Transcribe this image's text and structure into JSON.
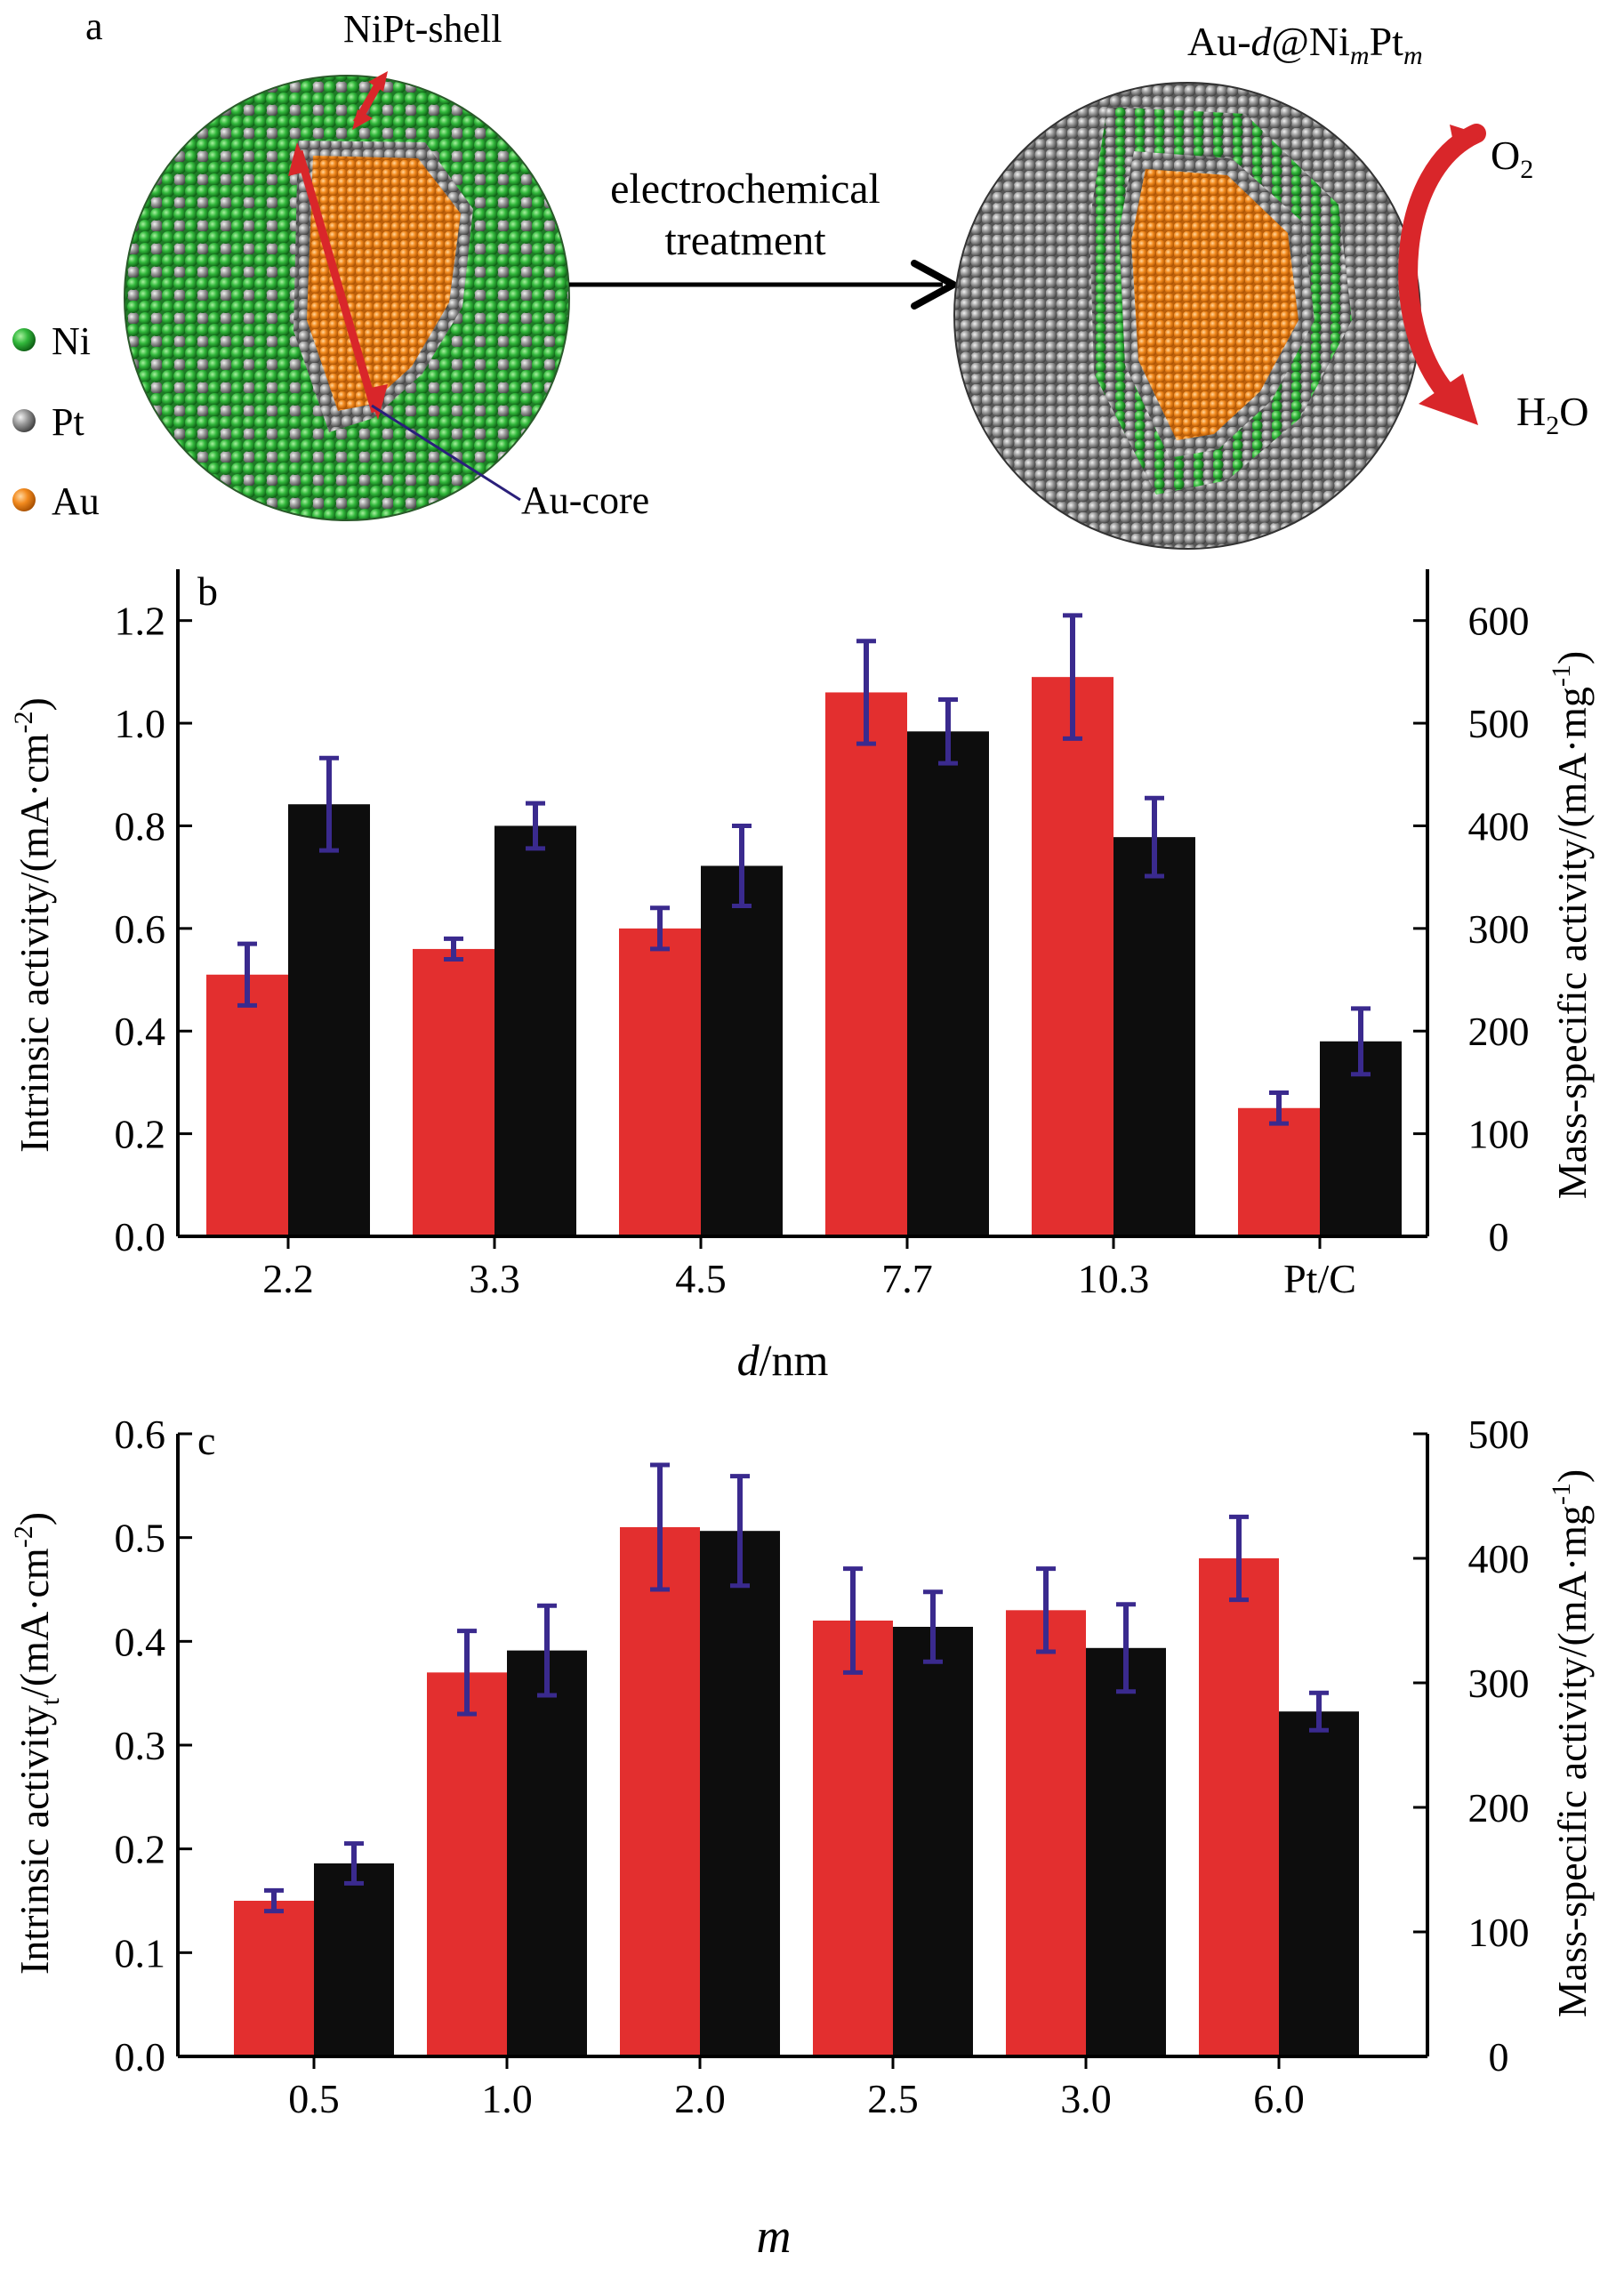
{
  "panel_a": {
    "label": "a",
    "shell_label": "NiPt-shell",
    "core_label": "Au-core",
    "arrow_text_line1": "electrochemical",
    "arrow_text_line2": "treatment",
    "product_label_prefix": "Au-",
    "product_label_d": "d",
    "product_label_mid": "@Ni",
    "product_label_sub1": "m",
    "product_label_pt": "Pt",
    "product_label_sub2": "m",
    "o2_main": "O",
    "o2_sub": "2",
    "h2o_h": "H",
    "h2o_sub": "2",
    "h2o_o": "O",
    "legend": [
      {
        "label": "Ni",
        "color": "#2fae3c"
      },
      {
        "label": "Pt",
        "color": "#8f8f8f"
      },
      {
        "label": "Au",
        "color": "#f08a1e"
      }
    ]
  },
  "colors": {
    "intrinsic": "#e32f2f",
    "mass": "#0d0d0d",
    "errorbar": "#3a2a8e",
    "arrow": "#d9262a"
  },
  "chart_data": [
    {
      "type": "bar",
      "panel_label": "b",
      "categories": [
        "2.2",
        "3.3",
        "4.5",
        "7.7",
        "10.3",
        "Pt/C"
      ],
      "xlabel_italic": "d",
      "xlabel_rest": "/nm",
      "ylabel_left": "Intrinsic activity/(mA·cm",
      "ylabel_left_sup": "-2",
      "ylabel_left_end": ")",
      "ylabel_right": "Mass-specific activity/(mA·mg",
      "ylabel_right_sup": "-1",
      "ylabel_right_end": ")",
      "ylim_left": [
        0,
        1.3
      ],
      "ylim_right": [
        0,
        650
      ],
      "yticks_left": [
        "0.0",
        "0.2",
        "0.4",
        "0.6",
        "0.8",
        "1.0",
        "1.2"
      ],
      "yticks_right": [
        "0",
        "100",
        "200",
        "300",
        "400",
        "500",
        "600"
      ],
      "series": [
        {
          "axis": "left",
          "color": "#e32f2f",
          "values": [
            0.51,
            0.56,
            0.6,
            1.06,
            1.09,
            0.25
          ],
          "errors": [
            0.06,
            0.02,
            0.04,
            0.1,
            0.12,
            0.03
          ]
        },
        {
          "axis": "right",
          "color": "#0d0d0d",
          "values": [
            421,
            400,
            361,
            492,
            389,
            190
          ],
          "errors": [
            45,
            22,
            39,
            31,
            38,
            32
          ]
        }
      ]
    },
    {
      "type": "bar",
      "panel_label": "c",
      "categories": [
        "0.5",
        "1.0",
        "2.0",
        "2.5",
        "3.0",
        "6.0"
      ],
      "xlabel_italic": "m",
      "xlabel_rest": "",
      "ylabel_left": "Intrinsic activity",
      "ylabel_left_sub": "t",
      "ylabel_left_rest": "/(mA·cm",
      "ylabel_left_sup": "-2",
      "ylabel_left_end": ")",
      "ylabel_right": "Mass-specific activity/(mA·mg",
      "ylabel_right_sup": "-1",
      "ylabel_right_end": ")",
      "ylim_left": [
        0,
        0.6
      ],
      "ylim_right": [
        0,
        500
      ],
      "yticks_left": [
        "0.0",
        "0.1",
        "0.2",
        "0.3",
        "0.4",
        "0.5",
        "0.6"
      ],
      "yticks_right": [
        "0",
        "100",
        "200",
        "300",
        "400",
        "500"
      ],
      "series": [
        {
          "axis": "left",
          "color": "#e32f2f",
          "values": [
            0.15,
            0.37,
            0.51,
            0.42,
            0.43,
            0.48
          ],
          "errors": [
            0.01,
            0.04,
            0.06,
            0.05,
            0.04,
            0.04
          ]
        },
        {
          "axis": "right",
          "color": "#0d0d0d",
          "values": [
            155,
            326,
            422,
            345,
            328,
            277
          ],
          "errors": [
            16,
            36,
            44,
            28,
            35,
            15
          ]
        }
      ]
    }
  ]
}
